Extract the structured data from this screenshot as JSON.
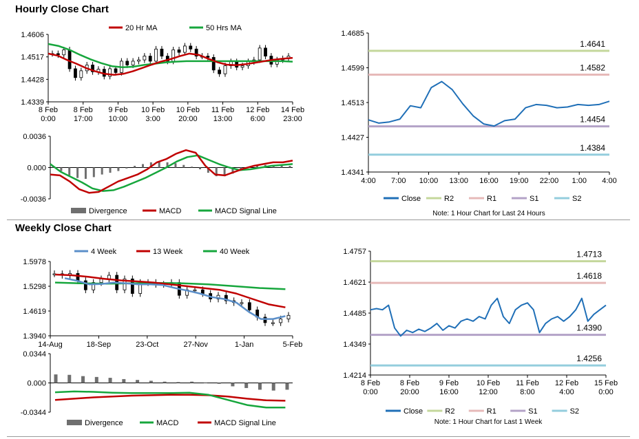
{
  "sections": {
    "hourly_title": "Hourly Close Chart",
    "weekly_title": "Weekly Close Chart"
  },
  "chart_data": [
    {
      "id": "hourly_price",
      "type": "candlestick",
      "title": "",
      "ylim": [
        1.4339,
        1.4606
      ],
      "yticks": [
        "1.4606",
        "1.4517",
        "1.4428",
        "1.4339"
      ],
      "xticks": [
        {
          "l1": "8 Feb",
          "l2": "0:00"
        },
        {
          "l1": "8 Feb",
          "l2": "17:00"
        },
        {
          "l1": "9 Feb",
          "l2": "10:00"
        },
        {
          "l1": "10 Feb",
          "l2": "3:00"
        },
        {
          "l1": "10 Feb",
          "l2": "20:00"
        },
        {
          "l1": "11 Feb",
          "l2": "13:00"
        },
        {
          "l1": "12 Feb",
          "l2": "6:00"
        },
        {
          "l1": "14 Feb",
          "l2": "23:00"
        }
      ],
      "legend": [
        "20 Hr MA",
        "50 Hrs MA"
      ],
      "colors": {
        "ma_short": "#c00000",
        "ma_long": "#16a63c"
      },
      "candles_close": [
        1.453,
        1.4525,
        1.4545,
        1.447,
        1.4435,
        1.4462,
        1.4485,
        1.4458,
        1.4468,
        1.444,
        1.447,
        1.4455,
        1.45,
        1.4485,
        1.45,
        1.4505,
        1.452,
        1.45,
        1.4548,
        1.452,
        1.45,
        1.4545,
        1.4535,
        1.456,
        1.4548,
        1.452,
        1.452,
        1.4515,
        1.4465,
        1.445,
        1.4482,
        1.4498,
        1.4476,
        1.4482,
        1.4498,
        1.4505,
        1.4552,
        1.452,
        1.4488,
        1.4505,
        1.451,
        1.452
      ],
      "ma20": [
        1.453,
        1.4522,
        1.4505,
        1.449,
        1.4473,
        1.446,
        1.445,
        1.4446,
        1.445,
        1.446,
        1.4473,
        1.4486,
        1.4498,
        1.4508,
        1.452,
        1.453,
        1.4525,
        1.451,
        1.4496,
        1.4486,
        1.4484,
        1.4488,
        1.4494,
        1.45,
        1.4506,
        1.451,
        1.4513
      ],
      "ma50": [
        1.4568,
        1.456,
        1.4545,
        1.4525,
        1.4507,
        1.4492,
        1.448,
        1.4476,
        1.4478,
        1.4485,
        1.449,
        1.4495,
        1.4498,
        1.45,
        1.45,
        1.45,
        1.45,
        1.45,
        1.45,
        1.45,
        1.45,
        1.45,
        1.45,
        1.4498
      ]
    },
    {
      "id": "hourly_macd",
      "type": "macd",
      "ylim": [
        -0.0036,
        0.0036
      ],
      "yticks": [
        "0.0036",
        "0.000",
        "-0.0036"
      ],
      "legend": [
        "Divergence",
        "MACD",
        "MACD Signal Line"
      ],
      "colors": {
        "macd": "#c00000",
        "signal": "#16a63c",
        "divergence": "#6f6f6f"
      },
      "macd": [
        -0.0008,
        -0.0009,
        -0.0016,
        -0.0025,
        -0.0029,
        -0.0028,
        -0.0022,
        -0.0016,
        -0.0012,
        -0.0008,
        -0.0002,
        0.0006,
        0.001,
        0.0016,
        0.002,
        0.0017,
        0.0002,
        -0.0008,
        -0.0009,
        -0.0005,
        -0.0001,
        0.0002,
        0.0004,
        0.0006,
        0.0006,
        0.0008
      ],
      "signal": [
        0.0004,
        -0.0005,
        -0.0011,
        -0.0017,
        -0.0024,
        -0.0027,
        -0.0026,
        -0.0022,
        -0.0017,
        -0.0012,
        -0.0006,
        0.0,
        0.0007,
        0.0012,
        0.0014,
        0.0009,
        0.0004,
        0.0,
        -0.0003,
        -0.0002,
        0.0,
        0.0002,
        0.0003,
        0.0004
      ],
      "divergence": [
        0.0002,
        -0.0004,
        -0.0009,
        -0.0012,
        -0.0013,
        -0.0011,
        -0.0008,
        -0.0006,
        -0.0004,
        -0.0001,
        0.0002,
        0.0004,
        0.0006,
        0.0007,
        0.0006,
        0.0005,
        0.0003,
        0.0001,
        -0.0002,
        -0.0006,
        -0.001,
        -0.001,
        -0.0007,
        -0.0003,
        0.0,
        0.0002,
        0.0003,
        0.0003,
        0.0003,
        0.0002
      ]
    },
    {
      "id": "hourly_levels",
      "type": "line",
      "ylim": [
        1.4341,
        1.4685
      ],
      "yticks": [
        "1.4685",
        "1.4599",
        "1.4513",
        "1.4427",
        "1.4341"
      ],
      "xticks": [
        "4:00",
        "7:00",
        "10:00",
        "13:00",
        "16:00",
        "19:00",
        "22:00",
        "1:00",
        "4:00"
      ],
      "levels": [
        {
          "name": "R2",
          "value": 1.4641,
          "label": "1.4641",
          "color": "#c4d79b"
        },
        {
          "name": "R1",
          "value": 1.4582,
          "label": "1.4582",
          "color": "#e6b9b8"
        },
        {
          "name": "S1",
          "value": 1.4454,
          "label": "1.4454",
          "color": "#b3a2c7"
        },
        {
          "name": "S2",
          "value": 1.4384,
          "label": "1.4384",
          "color": "#93cddd"
        }
      ],
      "close_color": "#1f6fb7",
      "close": [
        1.447,
        1.4462,
        1.4465,
        1.4472,
        1.4505,
        1.45,
        1.455,
        1.4565,
        1.4545,
        1.451,
        1.448,
        1.446,
        1.4455,
        1.4468,
        1.4472,
        1.45,
        1.4508,
        1.4506,
        1.45,
        1.4502,
        1.4508,
        1.4506,
        1.4508,
        1.4516
      ],
      "legend": [
        "Close",
        "R2",
        "R1",
        "S1",
        "S2"
      ],
      "note": "Note: 1 Hour Chart for Last 24 Hours"
    },
    {
      "id": "weekly_price",
      "type": "candlestick",
      "ylim": [
        1.394,
        1.5978
      ],
      "yticks": [
        "1.5978",
        "1.5298",
        "1.4619",
        "1.3940"
      ],
      "xticks": [
        "14-Aug",
        "18-Sep",
        "23-Oct",
        "27-Nov",
        "1-Jan",
        "5-Feb"
      ],
      "legend": [
        "4 Week",
        "13 Week",
        "40 Week"
      ],
      "colors": {
        "w4": "#5b8fc9",
        "w13": "#c00000",
        "w40": "#16a63c"
      },
      "candles_close": [
        1.564,
        1.56,
        1.565,
        1.545,
        1.52,
        1.54,
        1.55,
        1.56,
        1.52,
        1.55,
        1.51,
        1.54,
        1.54,
        1.535,
        1.535,
        1.54,
        1.505,
        1.52,
        1.52,
        1.51,
        1.495,
        1.505,
        1.49,
        1.485,
        1.485,
        1.465,
        1.445,
        1.43,
        1.43,
        1.44,
        1.45
      ],
      "w4": [
        1.552,
        1.545,
        1.535,
        1.536,
        1.54,
        1.538,
        1.535,
        1.535,
        1.533,
        1.525,
        1.518,
        1.51,
        1.5,
        1.495,
        1.485,
        1.46,
        1.44,
        1.44,
        1.448
      ],
      "w13": [
        1.562,
        1.56,
        1.556,
        1.55,
        1.546,
        1.543,
        1.54,
        1.535,
        1.53,
        1.525,
        1.52,
        1.51,
        1.495,
        1.48,
        1.472
      ],
      "w40": [
        1.54,
        1.538,
        1.537,
        1.538,
        1.539,
        1.538,
        1.535,
        1.53,
        1.525,
        1.522
      ]
    },
    {
      "id": "weekly_macd",
      "type": "macd",
      "ylim": [
        -0.0344,
        0.0344
      ],
      "yticks": [
        "0.0344",
        "0.000",
        "-0.0344"
      ],
      "legend": [
        "Divergence",
        "MACD",
        "MACD Signal Line"
      ],
      "colors": {
        "macd": "#16a63c",
        "signal": "#c00000",
        "divergence": "#6f6f6f"
      },
      "macd": [
        -0.011,
        -0.01,
        -0.0105,
        -0.0115,
        -0.012,
        -0.012,
        -0.012,
        -0.0115,
        -0.014,
        -0.02,
        -0.026,
        -0.029,
        -0.029
      ],
      "signal": [
        -0.02,
        -0.0185,
        -0.017,
        -0.016,
        -0.015,
        -0.0145,
        -0.014,
        -0.014,
        -0.0145,
        -0.016,
        -0.0185,
        -0.0205,
        -0.021
      ],
      "divergence": [
        0.01,
        0.0095,
        0.008,
        0.007,
        0.006,
        0.0045,
        0.0035,
        0.0025,
        0.0015,
        0.001,
        0.0015,
        0.0005,
        -0.001,
        -0.004,
        -0.006,
        -0.008,
        -0.009,
        -0.008
      ]
    },
    {
      "id": "weekly_levels",
      "type": "line",
      "ylim": [
        1.4214,
        1.4757
      ],
      "yticks": [
        "1.4757",
        "1.4621",
        "1.4485",
        "1.4349",
        "1.4214"
      ],
      "xticks": [
        {
          "l1": "8 Feb",
          "l2": "0:00"
        },
        {
          "l1": "8 Feb",
          "l2": "20:00"
        },
        {
          "l1": "9 Feb",
          "l2": "16:00"
        },
        {
          "l1": "10 Feb",
          "l2": "12:00"
        },
        {
          "l1": "11 Feb",
          "l2": "8:00"
        },
        {
          "l1": "12 Feb",
          "l2": "4:00"
        },
        {
          "l1": "15 Feb",
          "l2": "0:00"
        }
      ],
      "levels": [
        {
          "name": "R2",
          "value": 1.4713,
          "label": "1.4713",
          "color": "#c4d79b"
        },
        {
          "name": "R1",
          "value": 1.4618,
          "label": "1.4618",
          "color": "#e6b9b8"
        },
        {
          "name": "S1",
          "value": 1.439,
          "label": "1.4390",
          "color": "#b3a2c7"
        },
        {
          "name": "S2",
          "value": 1.4256,
          "label": "1.4256",
          "color": "#93cddd"
        }
      ],
      "close_color": "#1f6fb7",
      "close": [
        1.45,
        1.4505,
        1.45,
        1.452,
        1.442,
        1.4385,
        1.441,
        1.44,
        1.4415,
        1.4405,
        1.442,
        1.444,
        1.441,
        1.443,
        1.442,
        1.445,
        1.446,
        1.445,
        1.447,
        1.446,
        1.452,
        1.455,
        1.447,
        1.444,
        1.45,
        1.452,
        1.453,
        1.45,
        1.44,
        1.444,
        1.446,
        1.447,
        1.445,
        1.447,
        1.45,
        1.455,
        1.445,
        1.448,
        1.45,
        1.452
      ],
      "legend": [
        "Close",
        "R2",
        "R1",
        "S1",
        "S2"
      ],
      "note": "Note: 1 Hour Chart for Last 1 Week"
    }
  ]
}
